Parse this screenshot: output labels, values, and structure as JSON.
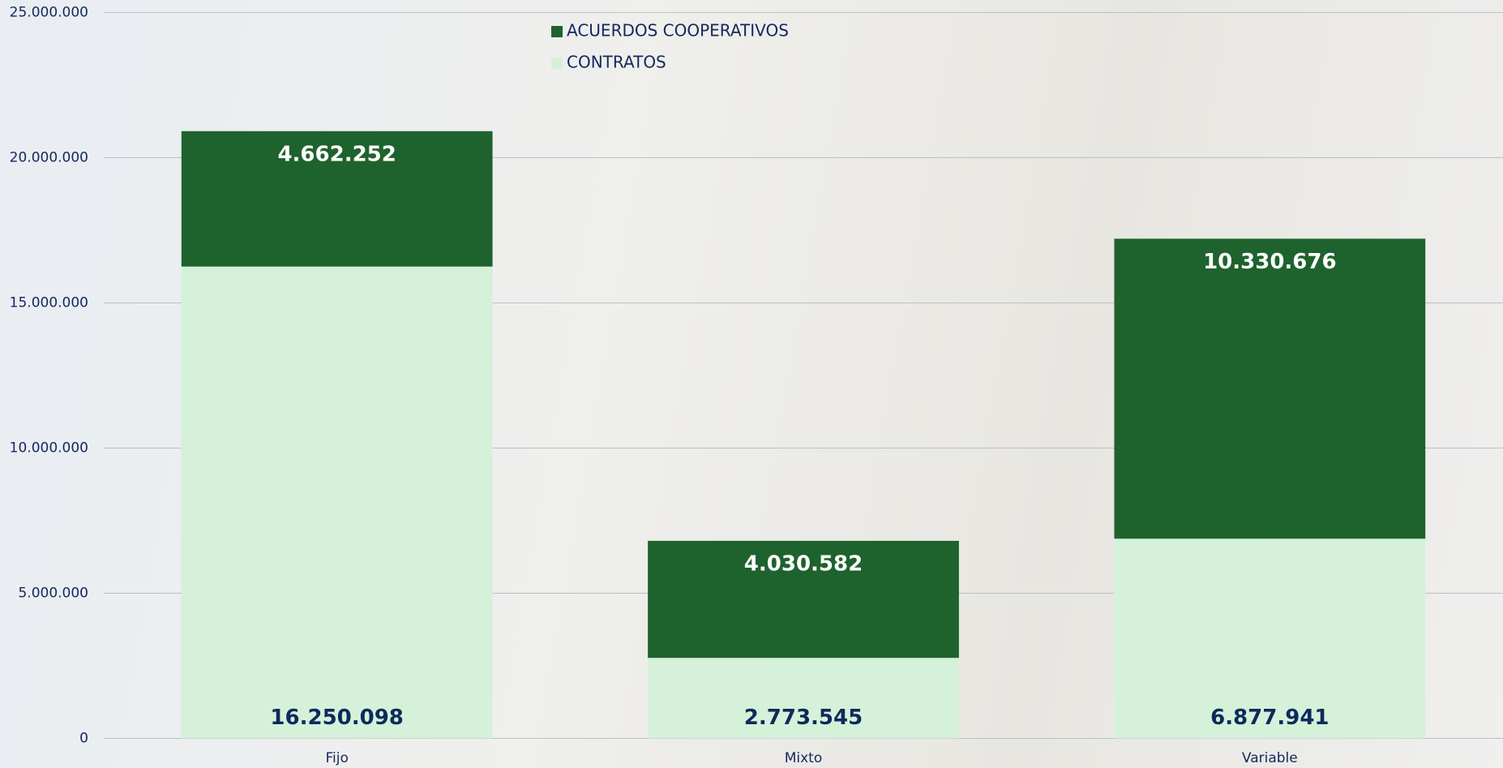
{
  "chart_data": {
    "type": "stacked_bar",
    "categories": [
      "Fijo",
      "Mixto",
      "Variable"
    ],
    "series": [
      {
        "name": "CONTRATOS",
        "color": "#d5f1d9",
        "label_color": "#0d2a5c",
        "values": [
          16250098,
          2773545,
          6877941
        ],
        "value_labels": [
          "16.250.098",
          "2.773.545",
          "6.877.941"
        ]
      },
      {
        "name": "ACUERDOS COOPERATIVOS",
        "color": "#1e622d",
        "label_color": "#ffffff",
        "values": [
          4662252,
          4030582,
          10330676
        ],
        "value_labels": [
          "4.662.252",
          "4.030.582",
          "10.330.676"
        ]
      }
    ],
    "ylim": [
      0,
      25000000
    ],
    "yticks": [
      0,
      {
        "value": 5000000,
        "label": "5.000.000"
      },
      {
        "value": 10000000,
        "label": "10.000.000"
      },
      {
        "value": 15000000,
        "label": "15.000.000"
      },
      {
        "value": 20000000,
        "label": "20.000.000"
      },
      {
        "value": 25000000,
        "label": "25.000.000"
      }
    ],
    "grid": true
  }
}
